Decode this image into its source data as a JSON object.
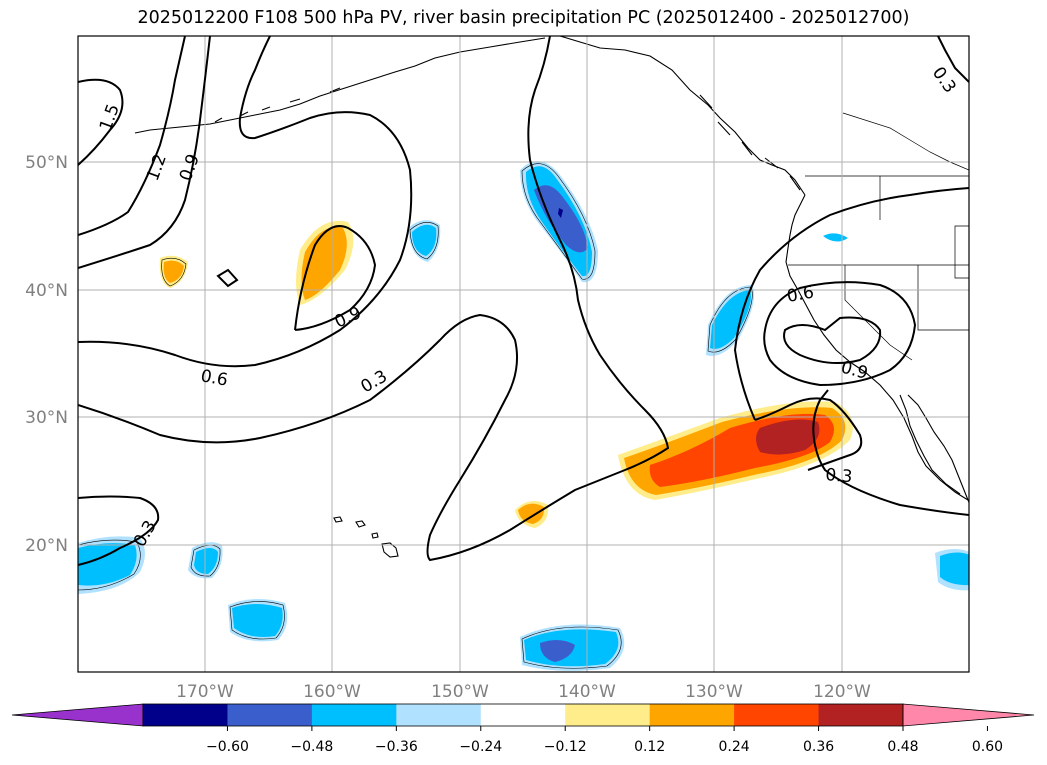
{
  "title": "2025012200 F108 500 hPa PV, river basin precipitation PC (2025012400 - 2025012700)",
  "map": {
    "lat_labels": [
      "50°N",
      "40°N",
      "30°N",
      "20°N"
    ],
    "lon_labels": [
      "170°W",
      "160°W",
      "150°W",
      "140°W",
      "130°W",
      "120°W"
    ],
    "contour_labels": [
      {
        "text": "1.5",
        "rotate": -70
      },
      {
        "text": "1.2",
        "rotate": -70
      },
      {
        "text": "0.9",
        "rotate": -70
      },
      {
        "text": "0.9",
        "rotate": -25
      },
      {
        "text": "0.6",
        "rotate": 10
      },
      {
        "text": "0.3",
        "rotate": -30
      },
      {
        "text": "0.3",
        "rotate": 60
      },
      {
        "text": "0.6",
        "rotate": -10
      },
      {
        "text": "0.9",
        "rotate": 15
      },
      {
        "text": "0.3",
        "rotate": 5
      },
      {
        "text": "0.3",
        "rotate": -55
      }
    ]
  },
  "colorbar": {
    "ticks": [
      "−0.60",
      "−0.48",
      "−0.36",
      "−0.24",
      "−0.12",
      "0.12",
      "0.24",
      "0.36",
      "0.48",
      "0.60"
    ],
    "colors": [
      "#9932cc",
      "#00008b",
      "#3a5fcd",
      "#00bfff",
      "#b0e2ff",
      "#ffffff",
      "#ffec8b",
      "#ffa500",
      "#ff4500",
      "#b22222",
      "#ff88aa"
    ]
  }
}
